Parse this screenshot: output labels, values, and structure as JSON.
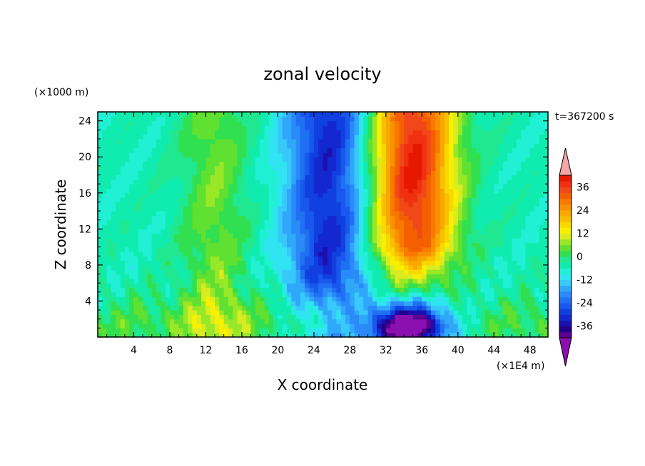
{
  "chart_data": {
    "type": "heatmap",
    "title": "zonal velocity",
    "xlabel": "X coordinate",
    "ylabel": "Z coordinate",
    "x_units": "(×1E4 m)",
    "y_units": "(×1000 m)",
    "time_label": "t=367200 s",
    "xlim": [
      0,
      50
    ],
    "ylim": [
      0,
      25
    ],
    "x_ticks": [
      4,
      8,
      12,
      16,
      20,
      24,
      28,
      32,
      36,
      40,
      44,
      48
    ],
    "y_ticks": [
      4,
      8,
      12,
      16,
      20,
      24
    ],
    "colorbar": {
      "levels": [
        -42,
        -39,
        -36,
        -33,
        -30,
        -27,
        -24,
        -21,
        -18,
        -15,
        -12,
        -9,
        -6,
        -3,
        0,
        3,
        6,
        9,
        12,
        15,
        18,
        21,
        24,
        27,
        30,
        33,
        36,
        39,
        42
      ],
      "colors": [
        "#5c0090",
        "#22008a",
        "#1a10b0",
        "#1428d0",
        "#1040e0",
        "#1858ec",
        "#2070f4",
        "#2a8af8",
        "#30a8fa",
        "#38c8fa",
        "#30e4f2",
        "#20f0d4",
        "#10ecb0",
        "#20e890",
        "#30e050",
        "#60e030",
        "#98e828",
        "#d8ec20",
        "#f8f000",
        "#f8d800",
        "#f8c000",
        "#f8a800",
        "#f89000",
        "#f87800",
        "#f46000",
        "#f04818",
        "#f03010",
        "#e81800"
      ],
      "under_color": "#8a10b0",
      "over_color": "#f4a6a6",
      "tick_labels": [
        "36",
        "24",
        "12",
        "0",
        "-12",
        "-24",
        "-36"
      ]
    },
    "field_note": "approximate reconstruction: blue jet (~-24) near X=22-29 aloft, red jet (~+36) near X=31-39 aloft, strong negative (~-36) near surface at X=31-39, green/yellow (0 to +12) elsewhere"
  }
}
